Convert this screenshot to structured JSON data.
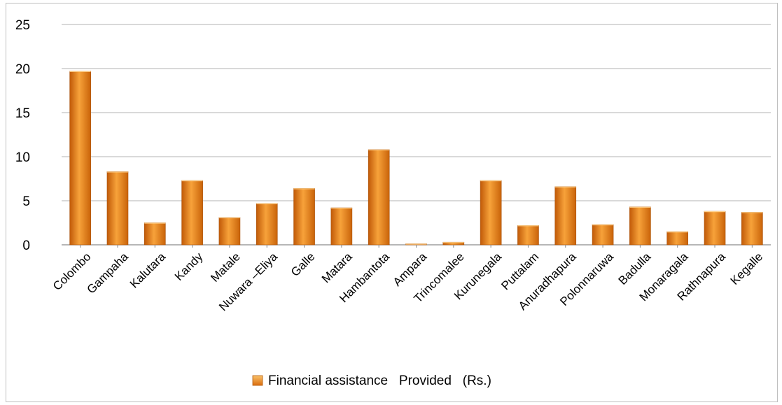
{
  "chart_data": {
    "type": "bar",
    "title": "",
    "xlabel": "",
    "ylabel": "",
    "categories": [
      "Colombo",
      "Gampaha",
      "Kalutara",
      "Kandy",
      "Matale",
      "Nuwara –Eliya",
      "Galle",
      "Matara",
      "Hambantota",
      "Ampara",
      "Trincomalee",
      "Kurunegala",
      "Puttalam",
      "Anuradhapura",
      "Polonnaruwa",
      "Badulla",
      "Monaragala",
      "Rathnapura",
      "Kegalle"
    ],
    "series": [
      {
        "name": "Financial assistance   Provided   (Rs.)",
        "values": [
          19.7,
          8.3,
          2.5,
          7.3,
          3.1,
          4.7,
          6.4,
          4.2,
          10.8,
          0.1,
          0.3,
          7.3,
          2.2,
          6.6,
          2.3,
          4.3,
          1.5,
          3.8,
          3.7
        ],
        "color": "#f28a1e"
      }
    ],
    "ylim": [
      0,
      25
    ],
    "yticks": [
      "0",
      "5",
      "10",
      "15",
      "20",
      "25"
    ],
    "grid": true,
    "legend_position": "bottom"
  }
}
